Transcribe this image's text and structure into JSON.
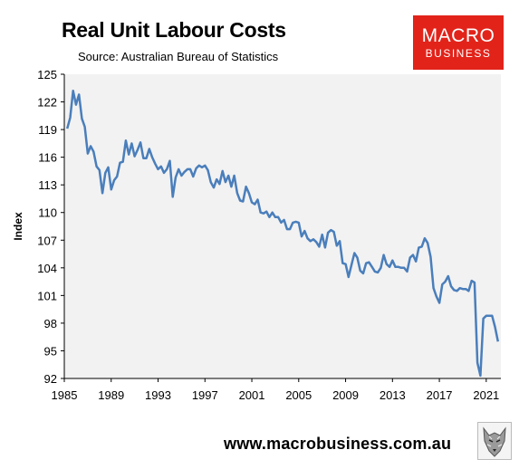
{
  "header": {
    "title": "Real Unit Labour Costs",
    "source": "Source: Australian Bureau of Statistics"
  },
  "logo": {
    "line1": "MACRO",
    "line2": "BUSINESS",
    "color": "#e2231a"
  },
  "footer": {
    "url": "www.macrobusiness.com.au",
    "mascot_icon": "wolf-icon"
  },
  "colors": {
    "line": "#4a7ebb",
    "plot_bg": "#f2f2f2"
  },
  "chart_data": {
    "type": "line",
    "title": "Real Unit Labour Costs",
    "xlabel": "",
    "ylabel": "Index",
    "xlim": [
      1985,
      2022.25
    ],
    "ylim": [
      92,
      125
    ],
    "x_ticks": [
      1985,
      1989,
      1993,
      1997,
      2001,
      2005,
      2009,
      2013,
      2017,
      2021
    ],
    "y_ticks": [
      92,
      95,
      98,
      101,
      104,
      107,
      110,
      113,
      116,
      119,
      122,
      125
    ],
    "grid": false,
    "series": [
      {
        "name": "",
        "color": "#4a7ebb",
        "points": [
          [
            1985.25,
            119.1
          ],
          [
            1985.5,
            120.3
          ],
          [
            1985.75,
            123.2
          ],
          [
            1986.0,
            121.7
          ],
          [
            1986.25,
            122.8
          ],
          [
            1986.5,
            120.2
          ],
          [
            1986.75,
            119.3
          ],
          [
            1987.0,
            116.4
          ],
          [
            1987.25,
            117.2
          ],
          [
            1987.5,
            116.6
          ],
          [
            1987.75,
            115.0
          ],
          [
            1988.0,
            114.6
          ],
          [
            1988.25,
            112.1
          ],
          [
            1988.5,
            114.3
          ],
          [
            1988.75,
            114.9
          ],
          [
            1989.0,
            112.5
          ],
          [
            1989.25,
            113.5
          ],
          [
            1989.5,
            113.9
          ],
          [
            1989.75,
            115.4
          ],
          [
            1990.0,
            115.5
          ],
          [
            1990.25,
            117.8
          ],
          [
            1990.5,
            116.3
          ],
          [
            1990.75,
            117.5
          ],
          [
            1991.0,
            116.1
          ],
          [
            1991.25,
            116.8
          ],
          [
            1991.5,
            117.6
          ],
          [
            1991.75,
            115.9
          ],
          [
            1992.0,
            115.9
          ],
          [
            1992.25,
            116.9
          ],
          [
            1992.5,
            116.0
          ],
          [
            1992.75,
            115.3
          ],
          [
            1993.0,
            114.7
          ],
          [
            1993.25,
            115.0
          ],
          [
            1993.5,
            114.3
          ],
          [
            1993.75,
            114.7
          ],
          [
            1994.0,
            115.6
          ],
          [
            1994.25,
            111.7
          ],
          [
            1994.5,
            113.8
          ],
          [
            1994.75,
            114.7
          ],
          [
            1995.0,
            114.0
          ],
          [
            1995.25,
            114.4
          ],
          [
            1995.5,
            114.7
          ],
          [
            1995.75,
            114.7
          ],
          [
            1996.0,
            113.9
          ],
          [
            1996.25,
            114.8
          ],
          [
            1996.5,
            115.1
          ],
          [
            1996.75,
            114.9
          ],
          [
            1997.0,
            115.1
          ],
          [
            1997.25,
            114.6
          ],
          [
            1997.5,
            113.3
          ],
          [
            1997.75,
            112.7
          ],
          [
            1998.0,
            113.6
          ],
          [
            1998.25,
            113.1
          ],
          [
            1998.5,
            114.5
          ],
          [
            1998.75,
            113.3
          ],
          [
            1999.0,
            114.0
          ],
          [
            1999.25,
            112.8
          ],
          [
            1999.5,
            114.0
          ],
          [
            1999.75,
            112.1
          ],
          [
            2000.0,
            111.3
          ],
          [
            2000.25,
            111.2
          ],
          [
            2000.5,
            112.8
          ],
          [
            2000.75,
            112.1
          ],
          [
            2001.0,
            111.1
          ],
          [
            2001.25,
            110.9
          ],
          [
            2001.5,
            111.4
          ],
          [
            2001.75,
            110.0
          ],
          [
            2002.0,
            109.9
          ],
          [
            2002.25,
            110.1
          ],
          [
            2002.5,
            109.5
          ],
          [
            2002.75,
            110.0
          ],
          [
            2003.0,
            109.5
          ],
          [
            2003.25,
            109.5
          ],
          [
            2003.5,
            108.9
          ],
          [
            2003.75,
            109.2
          ],
          [
            2004.0,
            108.2
          ],
          [
            2004.25,
            108.2
          ],
          [
            2004.5,
            108.9
          ],
          [
            2004.75,
            109.0
          ],
          [
            2005.0,
            108.9
          ],
          [
            2005.25,
            107.4
          ],
          [
            2005.5,
            108.0
          ],
          [
            2005.75,
            107.2
          ],
          [
            2006.0,
            106.9
          ],
          [
            2006.25,
            107.1
          ],
          [
            2006.5,
            106.8
          ],
          [
            2006.75,
            106.3
          ],
          [
            2007.0,
            107.6
          ],
          [
            2007.25,
            106.2
          ],
          [
            2007.5,
            107.8
          ],
          [
            2007.75,
            108.1
          ],
          [
            2008.0,
            107.9
          ],
          [
            2008.25,
            106.4
          ],
          [
            2008.5,
            106.9
          ],
          [
            2008.75,
            104.5
          ],
          [
            2009.0,
            104.4
          ],
          [
            2009.25,
            103.0
          ],
          [
            2009.5,
            104.3
          ],
          [
            2009.75,
            105.6
          ],
          [
            2010.0,
            105.1
          ],
          [
            2010.25,
            103.7
          ],
          [
            2010.5,
            103.4
          ],
          [
            2010.75,
            104.5
          ],
          [
            2011.0,
            104.6
          ],
          [
            2011.25,
            104.1
          ],
          [
            2011.5,
            103.6
          ],
          [
            2011.75,
            103.5
          ],
          [
            2012.0,
            104.0
          ],
          [
            2012.25,
            105.4
          ],
          [
            2012.5,
            104.4
          ],
          [
            2012.75,
            104.1
          ],
          [
            2013.0,
            104.8
          ],
          [
            2013.25,
            104.1
          ],
          [
            2013.5,
            104.1
          ],
          [
            2013.75,
            104.0
          ],
          [
            2014.0,
            104.0
          ],
          [
            2014.25,
            103.6
          ],
          [
            2014.5,
            105.1
          ],
          [
            2014.75,
            105.4
          ],
          [
            2015.0,
            104.7
          ],
          [
            2015.25,
            106.2
          ],
          [
            2015.5,
            106.3
          ],
          [
            2015.75,
            107.2
          ],
          [
            2016.0,
            106.7
          ],
          [
            2016.25,
            105.2
          ],
          [
            2016.5,
            101.8
          ],
          [
            2016.75,
            100.9
          ],
          [
            2017.0,
            100.2
          ],
          [
            2017.25,
            102.2
          ],
          [
            2017.5,
            102.5
          ],
          [
            2017.75,
            103.1
          ],
          [
            2018.0,
            102.0
          ],
          [
            2018.25,
            101.6
          ],
          [
            2018.5,
            101.5
          ],
          [
            2018.75,
            101.8
          ],
          [
            2019.0,
            101.7
          ],
          [
            2019.25,
            101.7
          ],
          [
            2019.5,
            101.5
          ],
          [
            2019.75,
            102.6
          ],
          [
            2020.0,
            102.4
          ],
          [
            2020.25,
            93.7
          ],
          [
            2020.5,
            92.3
          ],
          [
            2020.75,
            98.5
          ],
          [
            2021.0,
            98.8
          ],
          [
            2021.25,
            98.8
          ],
          [
            2021.5,
            98.8
          ],
          [
            2021.75,
            97.6
          ],
          [
            2022.0,
            96.0
          ]
        ]
      }
    ]
  }
}
